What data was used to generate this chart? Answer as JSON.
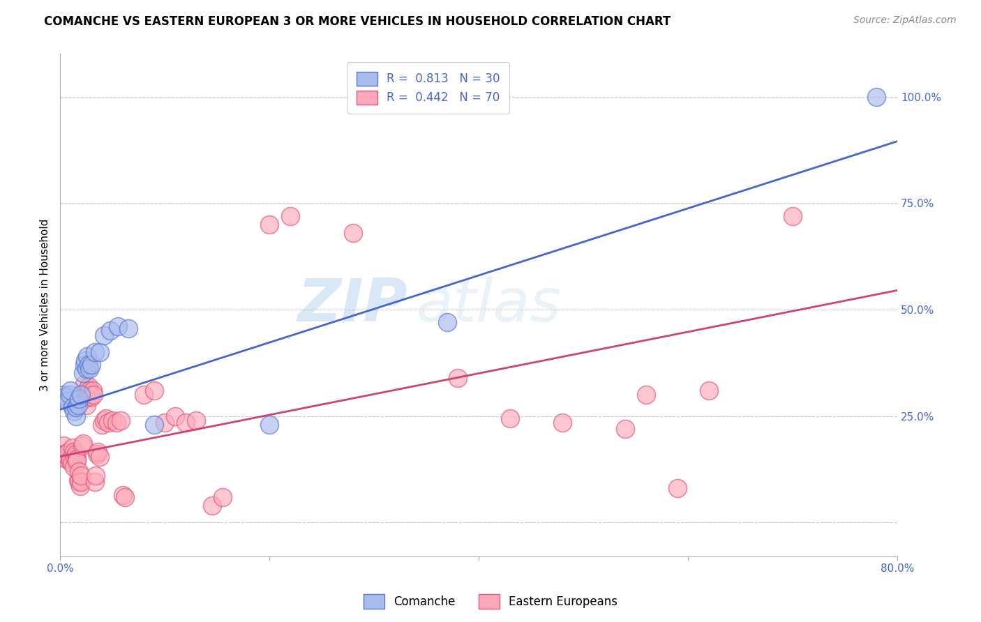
{
  "title": "COMANCHE VS EASTERN EUROPEAN 3 OR MORE VEHICLES IN HOUSEHOLD CORRELATION CHART",
  "source": "Source: ZipAtlas.com",
  "ylabel": "3 or more Vehicles in Household",
  "xlim": [
    0.0,
    0.8
  ],
  "ylim": [
    -0.08,
    1.1
  ],
  "xticks": [
    0.0,
    0.2,
    0.4,
    0.6,
    0.8
  ],
  "xticklabels": [
    "0.0%",
    "",
    "",
    "",
    "80.0%"
  ],
  "yticks_right": [
    0.0,
    0.25,
    0.5,
    0.75,
    1.0
  ],
  "yticklabels_right": [
    "",
    "25.0%",
    "50.0%",
    "75.0%",
    "100.0%"
  ],
  "grid_color": "#cccccc",
  "background_color": "#ffffff",
  "legend_R_blue": "0.813",
  "legend_N_blue": "30",
  "legend_R_pink": "0.442",
  "legend_N_pink": "70",
  "blue_scatter_color": "#aabbee",
  "blue_edge_color": "#5577cc",
  "pink_scatter_color": "#ffaabb",
  "pink_edge_color": "#dd5577",
  "line_blue_color": "#4466cc",
  "line_pink_color": "#cc4477",
  "legend_label_blue": "Comanche",
  "legend_label_pink": "Eastern Europeans",
  "blue_scatter": [
    [
      0.003,
      0.3
    ],
    [
      0.005,
      0.295
    ],
    [
      0.007,
      0.285
    ],
    [
      0.009,
      0.3
    ],
    [
      0.01,
      0.31
    ],
    [
      0.012,
      0.27
    ],
    [
      0.013,
      0.26
    ],
    [
      0.015,
      0.25
    ],
    [
      0.015,
      0.27
    ],
    [
      0.017,
      0.275
    ],
    [
      0.018,
      0.29
    ],
    [
      0.02,
      0.3
    ],
    [
      0.022,
      0.35
    ],
    [
      0.023,
      0.37
    ],
    [
      0.024,
      0.38
    ],
    [
      0.025,
      0.36
    ],
    [
      0.026,
      0.39
    ],
    [
      0.027,
      0.37
    ],
    [
      0.028,
      0.36
    ],
    [
      0.03,
      0.37
    ],
    [
      0.033,
      0.4
    ],
    [
      0.038,
      0.4
    ],
    [
      0.042,
      0.44
    ],
    [
      0.048,
      0.45
    ],
    [
      0.055,
      0.46
    ],
    [
      0.065,
      0.455
    ],
    [
      0.09,
      0.23
    ],
    [
      0.2,
      0.23
    ],
    [
      0.37,
      0.47
    ],
    [
      0.78,
      1.0
    ]
  ],
  "pink_scatter": [
    [
      0.003,
      0.18
    ],
    [
      0.004,
      0.16
    ],
    [
      0.005,
      0.16
    ],
    [
      0.006,
      0.15
    ],
    [
      0.007,
      0.155
    ],
    [
      0.008,
      0.165
    ],
    [
      0.009,
      0.145
    ],
    [
      0.01,
      0.15
    ],
    [
      0.011,
      0.14
    ],
    [
      0.012,
      0.175
    ],
    [
      0.013,
      0.165
    ],
    [
      0.013,
      0.13
    ],
    [
      0.014,
      0.155
    ],
    [
      0.015,
      0.16
    ],
    [
      0.016,
      0.15
    ],
    [
      0.016,
      0.145
    ],
    [
      0.017,
      0.1
    ],
    [
      0.018,
      0.12
    ],
    [
      0.018,
      0.095
    ],
    [
      0.019,
      0.085
    ],
    [
      0.02,
      0.095
    ],
    [
      0.02,
      0.11
    ],
    [
      0.021,
      0.18
    ],
    [
      0.022,
      0.185
    ],
    [
      0.023,
      0.3
    ],
    [
      0.023,
      0.325
    ],
    [
      0.024,
      0.29
    ],
    [
      0.025,
      0.275
    ],
    [
      0.025,
      0.31
    ],
    [
      0.026,
      0.295
    ],
    [
      0.027,
      0.305
    ],
    [
      0.027,
      0.32
    ],
    [
      0.028,
      0.31
    ],
    [
      0.029,
      0.3
    ],
    [
      0.03,
      0.295
    ],
    [
      0.031,
      0.31
    ],
    [
      0.032,
      0.3
    ],
    [
      0.033,
      0.095
    ],
    [
      0.034,
      0.11
    ],
    [
      0.035,
      0.16
    ],
    [
      0.036,
      0.165
    ],
    [
      0.038,
      0.155
    ],
    [
      0.04,
      0.23
    ],
    [
      0.042,
      0.24
    ],
    [
      0.044,
      0.245
    ],
    [
      0.046,
      0.235
    ],
    [
      0.05,
      0.24
    ],
    [
      0.054,
      0.235
    ],
    [
      0.058,
      0.24
    ],
    [
      0.06,
      0.065
    ],
    [
      0.062,
      0.06
    ],
    [
      0.08,
      0.3
    ],
    [
      0.09,
      0.31
    ],
    [
      0.1,
      0.235
    ],
    [
      0.11,
      0.25
    ],
    [
      0.12,
      0.235
    ],
    [
      0.13,
      0.24
    ],
    [
      0.145,
      0.04
    ],
    [
      0.155,
      0.06
    ],
    [
      0.2,
      0.7
    ],
    [
      0.22,
      0.72
    ],
    [
      0.28,
      0.68
    ],
    [
      0.38,
      0.34
    ],
    [
      0.43,
      0.245
    ],
    [
      0.48,
      0.235
    ],
    [
      0.56,
      0.3
    ],
    [
      0.59,
      0.08
    ],
    [
      0.7,
      0.72
    ],
    [
      0.54,
      0.22
    ],
    [
      0.62,
      0.31
    ]
  ],
  "blue_line_x": [
    0.0,
    0.8
  ],
  "blue_line_y": [
    0.265,
    0.895
  ],
  "pink_line_x": [
    0.0,
    0.8
  ],
  "pink_line_y": [
    0.155,
    0.545
  ],
  "title_fontsize": 12,
  "axis_label_fontsize": 11,
  "tick_fontsize": 11,
  "legend_fontsize": 12,
  "source_fontsize": 10,
  "scatter_size": 350,
  "scatter_linewidth": 1.2
}
